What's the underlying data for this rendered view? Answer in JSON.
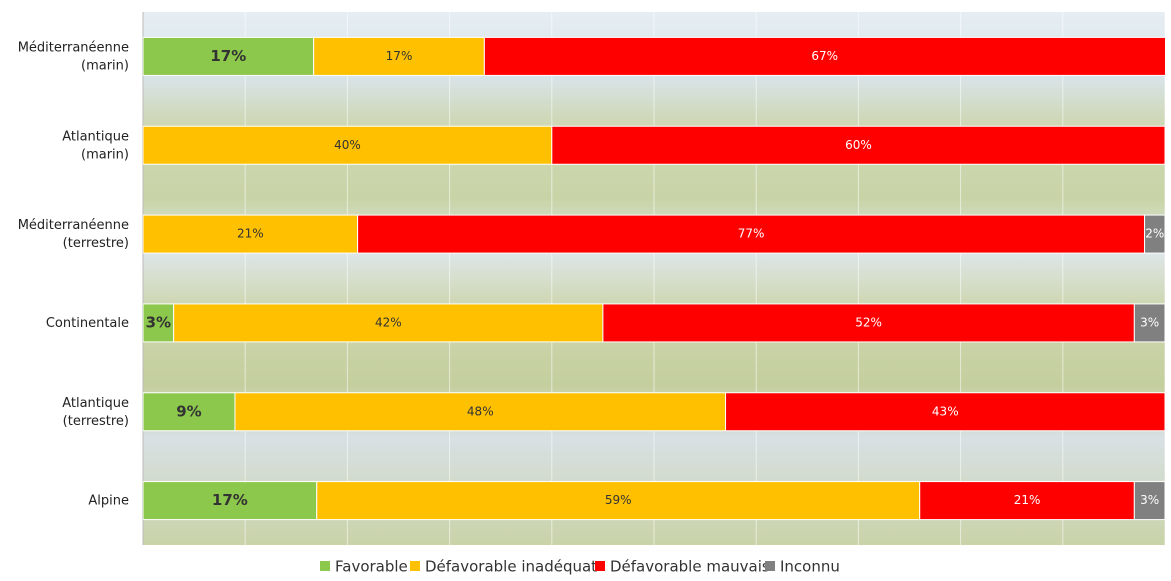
{
  "chart_data": {
    "type": "stacked-bar-horizontal",
    "categories": [
      [
        "Méditerranéenne",
        "(marin)"
      ],
      [
        "Atlantique",
        "(marin)"
      ],
      [
        "Méditerranéenne",
        "(terrestre)"
      ],
      [
        "Continentale"
      ],
      [
        "Atlantique",
        "(terrestre)"
      ],
      [
        "Alpine"
      ]
    ],
    "series": [
      {
        "name": "Favorable",
        "color": "#8cc84b",
        "values": [
          16.7,
          null,
          null,
          3,
          9,
          17
        ],
        "value_labels": [
          "17%",
          null,
          null,
          "3%",
          "9%",
          "17%"
        ]
      },
      {
        "name": "Défavorable inadéquat",
        "color": "#ffc000",
        "values": [
          16.7,
          40,
          21,
          42,
          48,
          59
        ],
        "value_labels": [
          "17%",
          "40%",
          "21%",
          "42%",
          "48%",
          "59%"
        ]
      },
      {
        "name": "Défavorable mauvais",
        "color": "#ff0000",
        "values": [
          66.7,
          60,
          77,
          52,
          43,
          21
        ],
        "value_labels": [
          "67%",
          "60%",
          "77%",
          "52%",
          "43%",
          "21%"
        ]
      },
      {
        "name": "Inconnu",
        "color": "#808080",
        "values": [
          null,
          null,
          2,
          3,
          null,
          3
        ],
        "value_labels": [
          null,
          null,
          "2%",
          "3%",
          null,
          "3%"
        ]
      }
    ],
    "xlim": [
      0,
      100
    ],
    "xticks": [
      0,
      10,
      20,
      30,
      40,
      50,
      60,
      70,
      80,
      90,
      100
    ],
    "grid": true,
    "legend": "bottom"
  }
}
